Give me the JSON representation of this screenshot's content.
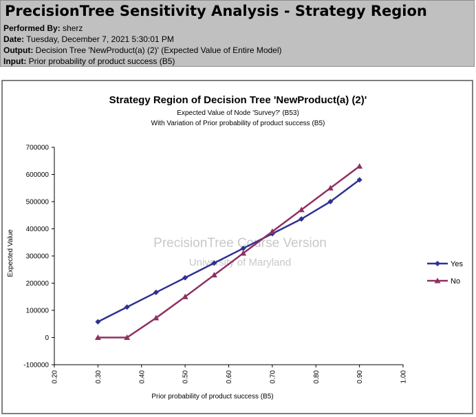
{
  "report": {
    "title": "PrecisionTree Sensitivity Analysis - Strategy Region",
    "performed_by_label": "Performed By:",
    "performed_by": "sherz",
    "date_label": "Date:",
    "date": "Tuesday, December 7, 2021 5:30:01 PM",
    "output_label": "Output:",
    "output": "Decision Tree 'NewProduct(a) (2)' (Expected Value of Entire Model)",
    "input_label": "Input:",
    "input": "Prior probability of product success (B5)"
  },
  "watermark": {
    "line1": "PrecisionTree Course Version",
    "line2": "University of Maryland"
  },
  "chart_data": {
    "type": "line",
    "title": "Strategy Region of Decision Tree 'NewProduct(a) (2)'",
    "subtitle1": "Expected Value of Node 'Survey?' (B53)",
    "subtitle2": "With Variation of Prior probability of product success (B5)",
    "xlabel": "Prior probability of product success (B5)",
    "ylabel": "Expected Value",
    "xlim": [
      0.2,
      1.0
    ],
    "ylim": [
      -100000,
      700000
    ],
    "xticks": [
      "0.20",
      "0.30",
      "0.40",
      "0.50",
      "0.60",
      "0.70",
      "0.80",
      "0.90",
      "1.00"
    ],
    "yticks": [
      "-100000",
      "0",
      "100000",
      "200000",
      "300000",
      "400000",
      "500000",
      "600000",
      "700000"
    ],
    "x": [
      0.3,
      0.3667,
      0.4333,
      0.5,
      0.5667,
      0.6333,
      0.7,
      0.7667,
      0.8333,
      0.9
    ],
    "series": [
      {
        "name": "Yes",
        "color": "#2e3192",
        "marker": "diamond",
        "values": [
          58000,
          112000,
          166000,
          220000,
          274000,
          328000,
          382000,
          436000,
          500000,
          580000
        ]
      },
      {
        "name": "No",
        "color": "#8e3062",
        "marker": "triangle",
        "values": [
          0,
          0,
          72000,
          150000,
          230000,
          310000,
          390000,
          470000,
          550000,
          630000
        ]
      }
    ],
    "grid": false,
    "legend_position": "right"
  }
}
